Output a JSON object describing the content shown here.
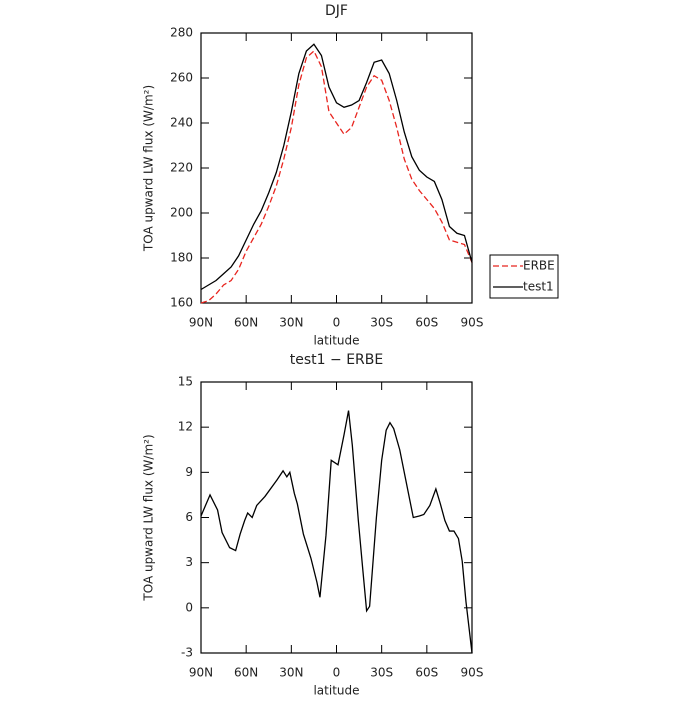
{
  "chart_data": [
    {
      "type": "line",
      "title": "DJF",
      "xlabel": "latitude",
      "ylabel": "TOA upward LW flux (W/m²)",
      "x": [
        90,
        85,
        80,
        75,
        70,
        65,
        60,
        55,
        50,
        45,
        40,
        35,
        30,
        25,
        20,
        15,
        10,
        5,
        0,
        -5,
        -10,
        -15,
        -20,
        -25,
        -30,
        -35,
        -40,
        -45,
        -50,
        -55,
        -60,
        -65,
        -70,
        -75,
        -80,
        -85,
        -90
      ],
      "series": [
        {
          "name": "ERBE",
          "color": "#e8251f",
          "linestyle": "dashed",
          "values": [
            160,
            161,
            164,
            168,
            170,
            175,
            183,
            189,
            195,
            203,
            212,
            224,
            238,
            257,
            269,
            272,
            265,
            245,
            240,
            235,
            238,
            247,
            256,
            261,
            259,
            250,
            238,
            224,
            215,
            210,
            206,
            202,
            196,
            188,
            187,
            186,
            178
          ]
        },
        {
          "name": "test1",
          "color": "#000000",
          "linestyle": "solid",
          "values": [
            166,
            168,
            170,
            173,
            176,
            181,
            188,
            195,
            201,
            209,
            218,
            230,
            245,
            262,
            272,
            275,
            270,
            256,
            249,
            247,
            248,
            250,
            258,
            267,
            268,
            262,
            250,
            236,
            225,
            219,
            216,
            214,
            206,
            194,
            191,
            190,
            178
          ]
        }
      ],
      "xlim": [
        90,
        -90
      ],
      "xticks": [
        {
          "value": 90,
          "label": "90N"
        },
        {
          "value": 60,
          "label": "60N"
        },
        {
          "value": 30,
          "label": "30N"
        },
        0,
        {
          "value": -30,
          "label": "30S"
        },
        {
          "value": -60,
          "label": "60S"
        },
        {
          "value": -90,
          "label": "90S"
        }
      ],
      "ylim": [
        160,
        280
      ],
      "yticks": [
        160,
        180,
        200,
        220,
        240,
        260,
        280
      ],
      "legend": "right"
    },
    {
      "type": "line",
      "title": "test1 − ERBE",
      "xlabel": "latitude",
      "ylabel": "TOA upward LW flux (W/m²)",
      "x": [
        90,
        84,
        79,
        76,
        71,
        67,
        64,
        61,
        59,
        56,
        53,
        47.5,
        39.5,
        35.5,
        33,
        31,
        28,
        26,
        22,
        17,
        13,
        11,
        7,
        3.5,
        -1,
        -5,
        -8,
        -10.5,
        -14.5,
        -17.5,
        -20,
        -22,
        -26.5,
        -30,
        -33,
        -35.5,
        -38,
        -42,
        -46,
        -51,
        -55,
        -58,
        -62,
        -66,
        -69,
        -72,
        -75,
        -78,
        -81,
        -83.5,
        -86,
        -90
      ],
      "values": [
        6.1,
        7.5,
        6.5,
        5,
        4,
        3.8,
        4.9,
        5.8,
        6.3,
        6,
        6.8,
        7.4,
        8.5,
        9.1,
        8.7,
        9,
        7.6,
        6.9,
        4.9,
        3.3,
        1.7,
        0.7,
        4.8,
        9.8,
        9.5,
        11.5,
        13.1,
        10.8,
        5.8,
        2.5,
        -0.2,
        0.1,
        6,
        9.8,
        11.8,
        12.3,
        11.9,
        10.5,
        8.5,
        6,
        6.1,
        6.2,
        6.8,
        7.9,
        6.9,
        5.8,
        5.1,
        5.1,
        4.6,
        3.1,
        0.4,
        -3
      ],
      "color": "#000000",
      "xlim": [
        90,
        -90
      ],
      "xticks": [
        {
          "value": 90,
          "label": "90N"
        },
        {
          "value": 60,
          "label": "60N"
        },
        {
          "value": 30,
          "label": "30N"
        },
        0,
        {
          "value": -30,
          "label": "30S"
        },
        {
          "value": -60,
          "label": "60S"
        },
        {
          "value": -90,
          "label": "90S"
        }
      ],
      "ylim": [
        -3,
        15
      ],
      "yticks": [
        -3,
        0,
        3,
        6,
        9,
        12,
        15
      ]
    }
  ]
}
